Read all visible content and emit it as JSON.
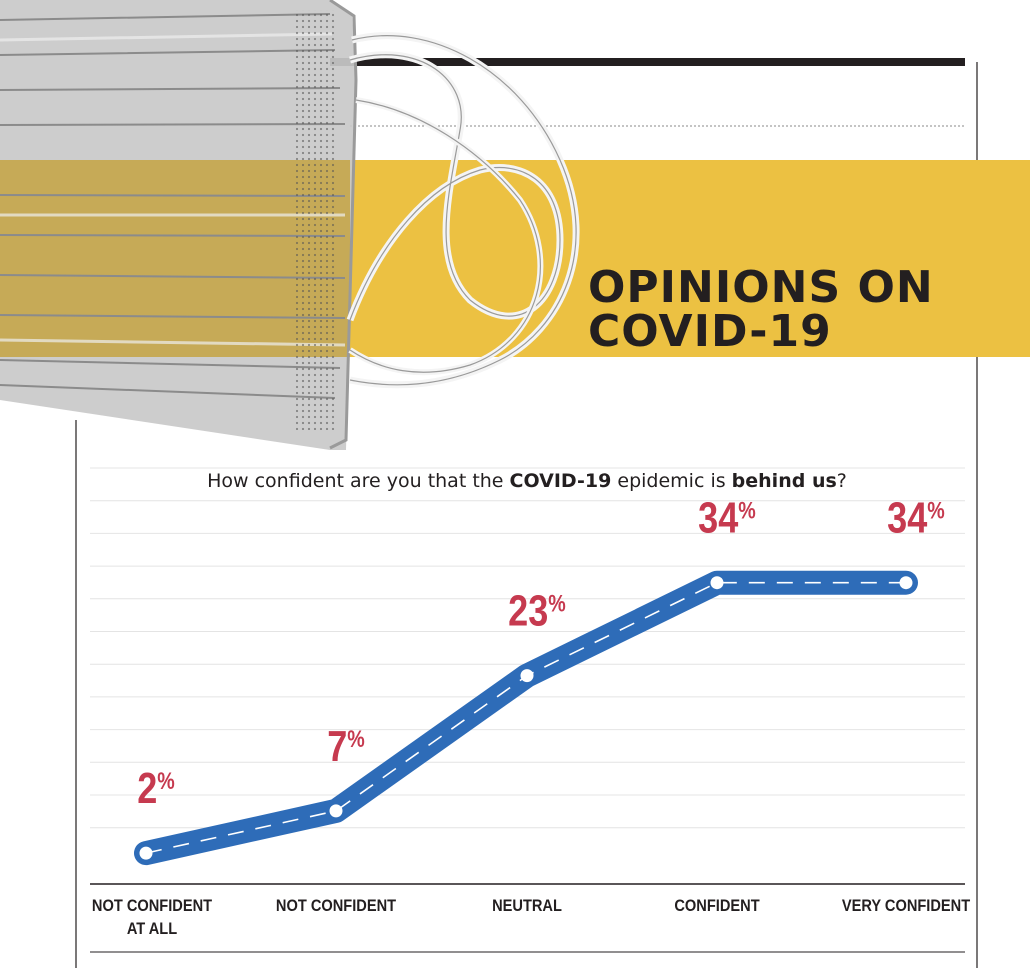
{
  "header": {
    "title_line1": "OPINIONS ON",
    "title_line2": "COVID-19"
  },
  "question": {
    "prefix": "How confident are you that the ",
    "bold1": "COVID-19",
    "middle": " epidemic is ",
    "bold2": "behind us",
    "suffix": "?"
  },
  "colors": {
    "accent_yellow": "#ecc142",
    "line_blue": "#2e6cb8",
    "value_red": "#c63a4f",
    "text_dark": "#231f20",
    "grid": "#e4e4e4"
  },
  "chart_data": {
    "type": "line",
    "title": "How confident are you that the COVID-19 epidemic is behind us?",
    "categories": [
      "NOT CONFIDENT\nAT ALL",
      "NOT CONFIDENT",
      "NEUTRAL",
      "CONFIDENT",
      "VERY CONFIDENT"
    ],
    "category_lines": [
      [
        "NOT CONFIDENT",
        "AT ALL"
      ],
      [
        "NOT CONFIDENT"
      ],
      [
        "NEUTRAL"
      ],
      [
        "CONFIDENT"
      ],
      [
        "VERY CONFIDENT"
      ]
    ],
    "values": [
      2,
      7,
      23,
      34,
      34
    ],
    "value_labels": [
      "2",
      "7",
      "23",
      "34",
      "34"
    ],
    "unit": "%",
    "ylim": [
      0,
      45
    ],
    "grid": true,
    "xlabel": "",
    "ylabel": ""
  }
}
